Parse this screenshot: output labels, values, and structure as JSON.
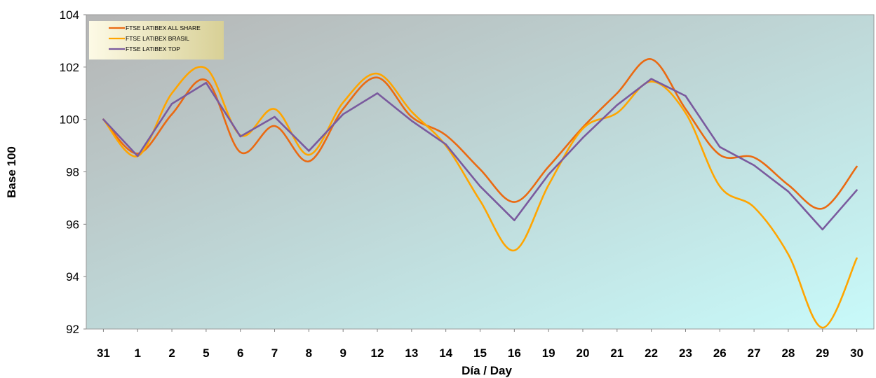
{
  "chart_data": {
    "type": "line",
    "categories": [
      "31",
      "1",
      "2",
      "5",
      "6",
      "7",
      "8",
      "9",
      "12",
      "13",
      "14",
      "15",
      "16",
      "19",
      "20",
      "21",
      "22",
      "23",
      "26",
      "27",
      "28",
      "29",
      "30"
    ],
    "xlabel": "Día / Day",
    "ylabel": "Base 100",
    "ylim": [
      92,
      104
    ],
    "yticks": [
      92,
      94,
      96,
      98,
      100,
      102,
      104
    ],
    "grid": false,
    "legend_position": "top-left",
    "background": {
      "gradient_from": "#b5b5b5",
      "gradient_to": "#c8fafa"
    },
    "series": [
      {
        "name": "FTSE LATIBEX ALL SHARE",
        "color": "#ea6a12",
        "smooth": true,
        "values": [
          100.0,
          98.7,
          100.2,
          101.5,
          98.75,
          99.75,
          98.4,
          100.4,
          101.6,
          100.1,
          99.4,
          98.1,
          96.85,
          98.2,
          99.7,
          101.0,
          102.3,
          100.4,
          98.65,
          98.55,
          97.5,
          96.6,
          98.2
        ]
      },
      {
        "name": "FTSE LATIBEX BRASIL",
        "color": "#ffa500",
        "smooth": true,
        "values": [
          100.0,
          98.6,
          101.0,
          101.95,
          99.4,
          100.4,
          98.65,
          100.65,
          101.75,
          100.3,
          99.0,
          96.9,
          95.0,
          97.5,
          99.65,
          100.25,
          101.45,
          100.25,
          97.45,
          96.65,
          94.85,
          92.05,
          94.7
        ]
      },
      {
        "name": "FTSE LATIBEX TOP",
        "color": "#7a5a9e",
        "smooth": false,
        "values": [
          100.0,
          98.6,
          100.6,
          101.4,
          99.35,
          100.1,
          98.8,
          100.2,
          101.0,
          99.95,
          99.05,
          97.45,
          96.15,
          97.9,
          99.3,
          100.55,
          101.55,
          100.9,
          98.95,
          98.25,
          97.25,
          95.8,
          97.3
        ]
      }
    ]
  }
}
